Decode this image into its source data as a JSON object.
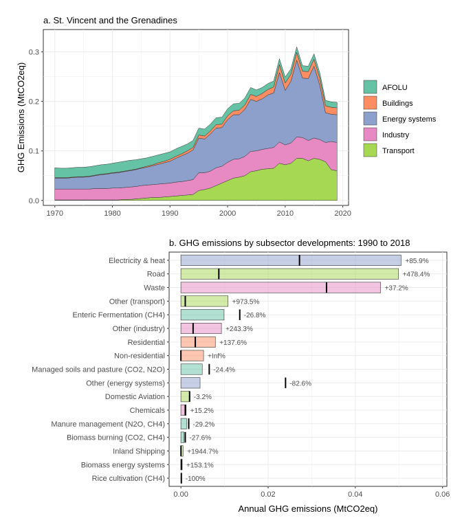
{
  "chart_data": [
    {
      "type": "area",
      "title": "a. St. Vincent and the Grenadines",
      "xlabel": "",
      "ylabel": "GHG Emissions (MtCO2eq)",
      "xlim": [
        1968,
        2021
      ],
      "ylim": [
        -0.01,
        0.345
      ],
      "x_ticks": [
        1970,
        1980,
        1990,
        2000,
        2010,
        2020
      ],
      "y_ticks": [
        0.0,
        0.1,
        0.2,
        0.3
      ],
      "y_tick_labels": [
        "0.0",
        "0.1",
        "0.2",
        "0.3"
      ],
      "legend_position": "right",
      "stacked": true,
      "x": [
        1970,
        1971,
        1972,
        1973,
        1974,
        1975,
        1976,
        1977,
        1978,
        1979,
        1980,
        1981,
        1982,
        1983,
        1984,
        1985,
        1986,
        1987,
        1988,
        1989,
        1990,
        1991,
        1992,
        1993,
        1994,
        1995,
        1996,
        1997,
        1998,
        1999,
        2000,
        2001,
        2002,
        2003,
        2004,
        2005,
        2006,
        2007,
        2008,
        2009,
        2010,
        2011,
        2012,
        2013,
        2014,
        2015,
        2016,
        2017,
        2018,
        2019
      ],
      "series": [
        {
          "name": "AFOLU",
          "color": "#66c2a5",
          "values": [
            0.02,
            0.019,
            0.019,
            0.019,
            0.019,
            0.019,
            0.019,
            0.019,
            0.019,
            0.019,
            0.019,
            0.02,
            0.02,
            0.02,
            0.019,
            0.018,
            0.017,
            0.017,
            0.016,
            0.016,
            0.015,
            0.015,
            0.015,
            0.014,
            0.014,
            0.014,
            0.014,
            0.014,
            0.014,
            0.014,
            0.014,
            0.014,
            0.014,
            0.014,
            0.014,
            0.013,
            0.012,
            0.012,
            0.012,
            0.012,
            0.012,
            0.011,
            0.011,
            0.011,
            0.011,
            0.011,
            0.011,
            0.011,
            0.011,
            0.011
          ]
        },
        {
          "name": "Buildings",
          "color": "#fc8d62",
          "values": [
            0.001,
            0.001,
            0.001,
            0.001,
            0.001,
            0.001,
            0.001,
            0.001,
            0.001,
            0.001,
            0.001,
            0.001,
            0.001,
            0.001,
            0.001,
            0.001,
            0.002,
            0.002,
            0.003,
            0.003,
            0.004,
            0.004,
            0.004,
            0.005,
            0.005,
            0.006,
            0.006,
            0.006,
            0.007,
            0.007,
            0.008,
            0.008,
            0.009,
            0.009,
            0.01,
            0.01,
            0.011,
            0.011,
            0.012,
            0.016,
            0.015,
            0.014,
            0.016,
            0.014,
            0.014,
            0.014,
            0.014,
            0.014,
            0.014,
            0.014
          ]
        },
        {
          "name": "Energy systems",
          "color": "#8da0cb",
          "values": [
            0.022,
            0.022,
            0.022,
            0.023,
            0.024,
            0.024,
            0.025,
            0.026,
            0.028,
            0.029,
            0.03,
            0.031,
            0.032,
            0.033,
            0.034,
            0.035,
            0.036,
            0.038,
            0.04,
            0.042,
            0.044,
            0.048,
            0.052,
            0.055,
            0.06,
            0.07,
            0.068,
            0.075,
            0.08,
            0.078,
            0.086,
            0.09,
            0.089,
            0.095,
            0.105,
            0.1,
            0.102,
            0.108,
            0.11,
            0.14,
            0.11,
            0.125,
            0.155,
            0.12,
            0.125,
            0.145,
            0.11,
            0.06,
            0.055,
            0.056
          ]
        },
        {
          "name": "Industry",
          "color": "#e78ac3",
          "values": [
            0.022,
            0.022,
            0.022,
            0.022,
            0.022,
            0.022,
            0.022,
            0.023,
            0.023,
            0.023,
            0.024,
            0.024,
            0.024,
            0.025,
            0.025,
            0.026,
            0.026,
            0.026,
            0.027,
            0.027,
            0.027,
            0.028,
            0.028,
            0.029,
            0.03,
            0.036,
            0.034,
            0.034,
            0.036,
            0.034,
            0.037,
            0.038,
            0.037,
            0.039,
            0.041,
            0.04,
            0.04,
            0.041,
            0.042,
            0.043,
            0.04,
            0.041,
            0.043,
            0.042,
            0.041,
            0.041,
            0.04,
            0.039,
            0.057,
            0.057
          ]
        },
        {
          "name": "Transport",
          "color": "#a6d854",
          "values": [
            0.001,
            0.001,
            0.001,
            0.001,
            0.001,
            0.001,
            0.001,
            0.001,
            0.001,
            0.001,
            0.001,
            0.001,
            0.002,
            0.002,
            0.003,
            0.004,
            0.005,
            0.006,
            0.006,
            0.007,
            0.008,
            0.009,
            0.01,
            0.011,
            0.012,
            0.02,
            0.022,
            0.025,
            0.03,
            0.035,
            0.04,
            0.045,
            0.047,
            0.05,
            0.058,
            0.06,
            0.063,
            0.064,
            0.065,
            0.075,
            0.072,
            0.075,
            0.085,
            0.085,
            0.08,
            0.085,
            0.083,
            0.078,
            0.062,
            0.06
          ]
        }
      ]
    },
    {
      "type": "bar",
      "orientation": "horizontal",
      "title": "b. GHG emissions by subsector developments: 1990 to 2018",
      "xlabel": "Annual GHG emissions (MtCO2eq)",
      "ylabel": "",
      "xlim": [
        -0.0027,
        0.061
      ],
      "x_ticks": [
        0.0,
        0.02,
        0.04,
        0.06
      ],
      "x_tick_labels": [
        "0.00",
        "0.02",
        "0.04",
        "0.06"
      ],
      "categories": [
        "Electricity & heat",
        "Road",
        "Waste",
        "Other (transport)",
        "Enteric Fermentation (CH4)",
        "Other (industry)",
        "Residential",
        "Non-residential",
        "Managed soils and pasture (CO2, N2O)",
        "Other (energy systems)",
        "Domestic Aviation",
        "Chemicals",
        "Manure management (N2O, CH4)",
        "Biomass burning (CO2, CH4)",
        "Inland Shipping",
        "Biomass energy systems",
        "Rice cultivation (CH4)"
      ],
      "values_2018": [
        0.0505,
        0.0499,
        0.0458,
        0.0108,
        0.0099,
        0.0093,
        0.0079,
        0.0052,
        0.0049,
        0.0044,
        0.0019,
        0.0012,
        0.0013,
        0.0007,
        0.0005,
        0.0003,
        0.0
      ],
      "markers_1990": [
        0.0272,
        0.0087,
        0.0334,
        0.001,
        0.0135,
        0.0028,
        0.0033,
        0.0,
        0.0065,
        0.024,
        0.002,
        0.001,
        0.0018,
        0.001,
        2e-05,
        0.0001,
        0.0001
      ],
      "pct_labels": [
        "+85.9%",
        "+478.4%",
        "+37.2%",
        "+973.5%",
        "-26.8%",
        "+243.3%",
        "+137.6%",
        "+Inf%",
        "-24.4%",
        "-82.6%",
        "-3.2%",
        "+15.2%",
        "-29.2%",
        "-27.6%",
        "+1944.7%",
        "+153.1%",
        "-100%"
      ],
      "bar_colors": [
        "#8da0cb",
        "#a6d854",
        "#e78ac3",
        "#a6d854",
        "#66c2a5",
        "#e78ac3",
        "#fc8d62",
        "#fc8d62",
        "#66c2a5",
        "#8da0cb",
        "#a6d854",
        "#e78ac3",
        "#66c2a5",
        "#66c2a5",
        "#a6d854",
        "#8da0cb",
        "#66c2a5"
      ]
    }
  ]
}
